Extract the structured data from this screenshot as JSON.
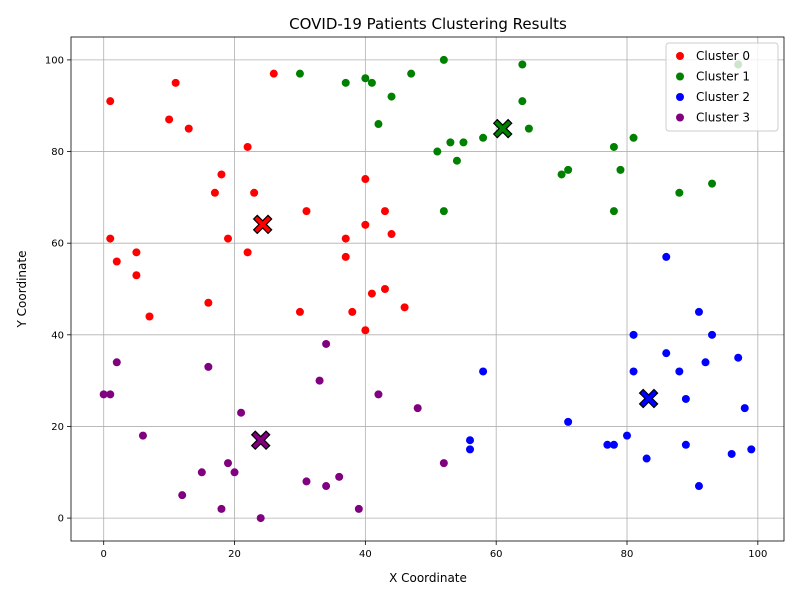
{
  "chart_data": {
    "type": "scatter",
    "title": "COVID-19 Patients Clustering Results",
    "xlabel": "X Coordinate",
    "ylabel": "Y Coordinate",
    "xlim": [
      -5,
      104
    ],
    "ylim": [
      -5,
      105
    ],
    "xticks": [
      0,
      20,
      40,
      60,
      80,
      100
    ],
    "yticks": [
      0,
      20,
      40,
      60,
      80,
      100
    ],
    "grid": true,
    "legend_position": "top-right",
    "series": [
      {
        "name": "Cluster 0",
        "color": "#ff0000",
        "points": [
          [
            1,
            91
          ],
          [
            11,
            95
          ],
          [
            26,
            97
          ],
          [
            10,
            87
          ],
          [
            13,
            85
          ],
          [
            22,
            81
          ],
          [
            18,
            75
          ],
          [
            17,
            71
          ],
          [
            23,
            71
          ],
          [
            40,
            74
          ],
          [
            31,
            67
          ],
          [
            43,
            67
          ],
          [
            1,
            61
          ],
          [
            19,
            61
          ],
          [
            37,
            61
          ],
          [
            40,
            64
          ],
          [
            44,
            62
          ],
          [
            5,
            58
          ],
          [
            22,
            58
          ],
          [
            2,
            56
          ],
          [
            37,
            57
          ],
          [
            5,
            53
          ],
          [
            41,
            49
          ],
          [
            43,
            50
          ],
          [
            16,
            47
          ],
          [
            46,
            46
          ],
          [
            30,
            45
          ],
          [
            38,
            45
          ],
          [
            7,
            44
          ],
          [
            40,
            41
          ]
        ],
        "centroid": [
          24.3,
          64.1
        ]
      },
      {
        "name": "Cluster 1",
        "color": "#008000",
        "points": [
          [
            52,
            100
          ],
          [
            30,
            97
          ],
          [
            47,
            97
          ],
          [
            64,
            99
          ],
          [
            97,
            99
          ],
          [
            37,
            95
          ],
          [
            40,
            96
          ],
          [
            41,
            95
          ],
          [
            44,
            92
          ],
          [
            64,
            91
          ],
          [
            42,
            86
          ],
          [
            65,
            85
          ],
          [
            53,
            82
          ],
          [
            55,
            82
          ],
          [
            58,
            83
          ],
          [
            81,
            83
          ],
          [
            78,
            81
          ],
          [
            51,
            80
          ],
          [
            54,
            78
          ],
          [
            71,
            76
          ],
          [
            79,
            76
          ],
          [
            70,
            75
          ],
          [
            93,
            73
          ],
          [
            88,
            71
          ],
          [
            52,
            67
          ],
          [
            78,
            67
          ]
        ],
        "centroid": [
          61.0,
          85.0
        ]
      },
      {
        "name": "Cluster 2",
        "color": "#0000ff",
        "points": [
          [
            86,
            57
          ],
          [
            91,
            45
          ],
          [
            81,
            40
          ],
          [
            93,
            40
          ],
          [
            86,
            36
          ],
          [
            97,
            35
          ],
          [
            92,
            34
          ],
          [
            58,
            32
          ],
          [
            81,
            32
          ],
          [
            88,
            32
          ],
          [
            89,
            26
          ],
          [
            98,
            24
          ],
          [
            71,
            21
          ],
          [
            80,
            18
          ],
          [
            56,
            17
          ],
          [
            77,
            16
          ],
          [
            78,
            16
          ],
          [
            89,
            16
          ],
          [
            56,
            15
          ],
          [
            99,
            15
          ],
          [
            96,
            14
          ],
          [
            83,
            13
          ],
          [
            91,
            7
          ]
        ],
        "centroid": [
          83.3,
          26.1
        ]
      },
      {
        "name": "Cluster 3",
        "color": "#800080",
        "points": [
          [
            34,
            38
          ],
          [
            2,
            34
          ],
          [
            16,
            33
          ],
          [
            33,
            30
          ],
          [
            0,
            27
          ],
          [
            1,
            27
          ],
          [
            42,
            27
          ],
          [
            48,
            24
          ],
          [
            21,
            23
          ],
          [
            6,
            18
          ],
          [
            19,
            12
          ],
          [
            52,
            12
          ],
          [
            15,
            10
          ],
          [
            20,
            10
          ],
          [
            36,
            9
          ],
          [
            31,
            8
          ],
          [
            34,
            7
          ],
          [
            12,
            5
          ],
          [
            18,
            2
          ],
          [
            39,
            2
          ],
          [
            24,
            0
          ]
        ],
        "centroid": [
          24.0,
          17.0
        ]
      }
    ]
  }
}
